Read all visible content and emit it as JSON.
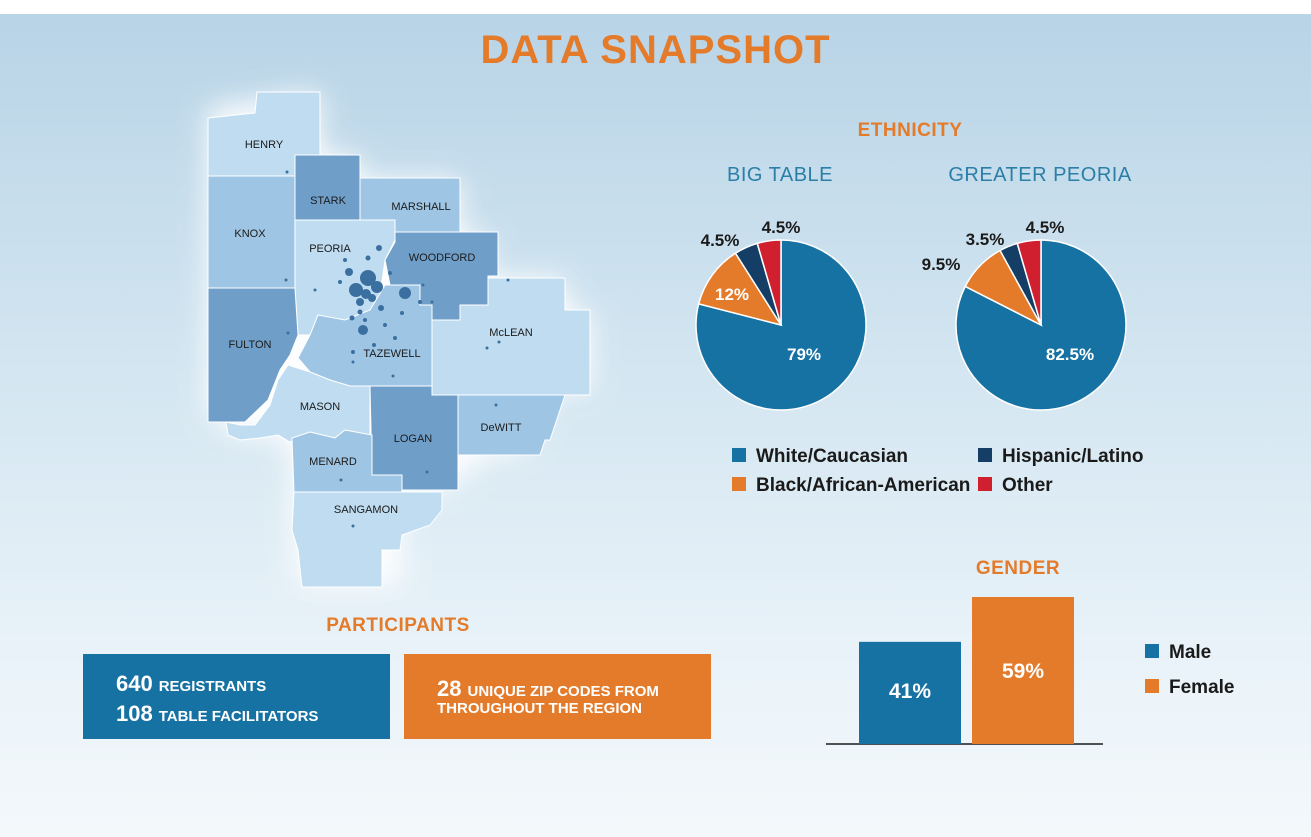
{
  "colors": {
    "orange": "#e47b2b",
    "blue": "#1672a3",
    "navy": "#153e66",
    "red": "#d01f2f",
    "teal_text": "#2b7fa7"
  },
  "title": "DATA SNAPSHOT",
  "map": {
    "counties": [
      "HENRY",
      "STARK",
      "MARSHALL",
      "KNOX",
      "PEORIA",
      "WOODFORD",
      "McLEAN",
      "FULTON",
      "TAZEWELL",
      "MASON",
      "DeWITT",
      "LOGAN",
      "MENARD",
      "SANGAMON"
    ]
  },
  "ethnicity": {
    "heading": "ETHNICITY",
    "legend": [
      {
        "label": "White/Caucasian",
        "color": "#1672a3"
      },
      {
        "label": "Hispanic/Latino",
        "color": "#153e66"
      },
      {
        "label": "Black/African-American",
        "color": "#e47b2b"
      },
      {
        "label": "Other",
        "color": "#d01f2f"
      }
    ]
  },
  "participants": {
    "heading": "PARTICIPANTS",
    "registrants_num": "640",
    "registrants_label": "REGISTRANTS",
    "facilitators_num": "108",
    "facilitators_label": "TABLE FACILITATORS",
    "zip_num": "28",
    "zip_label_1": "UNIQUE ZIP CODES FROM",
    "zip_label_2": "THROUGHOUT THE REGION"
  },
  "gender": {
    "heading": "GENDER"
  },
  "chart_data": [
    {
      "type": "pie",
      "title": "BIG TABLE",
      "categories": [
        "White/Caucasian",
        "Black/African-American",
        "Hispanic/Latino",
        "Other"
      ],
      "values": [
        79,
        12,
        4.5,
        4.5
      ],
      "labels": [
        "79%",
        "12%",
        "4.5%",
        "4.5%"
      ],
      "colors": [
        "#1672a3",
        "#e47b2b",
        "#153e66",
        "#d01f2f"
      ]
    },
    {
      "type": "pie",
      "title": "GREATER PEORIA",
      "categories": [
        "White/Caucasian",
        "Black/African-American",
        "Hispanic/Latino",
        "Other"
      ],
      "values": [
        82.5,
        9.5,
        3.5,
        4.5
      ],
      "labels": [
        "82.5%",
        "9.5%",
        "3.5%",
        "4.5%"
      ],
      "colors": [
        "#1672a3",
        "#e47b2b",
        "#153e66",
        "#d01f2f"
      ]
    },
    {
      "type": "bar",
      "title": "GENDER",
      "categories": [
        "Male",
        "Female"
      ],
      "values": [
        41,
        59
      ],
      "labels": [
        "41%",
        "59%"
      ],
      "colors": [
        "#1672a3",
        "#e47b2b"
      ],
      "legend": [
        "Male",
        "Female"
      ]
    }
  ]
}
